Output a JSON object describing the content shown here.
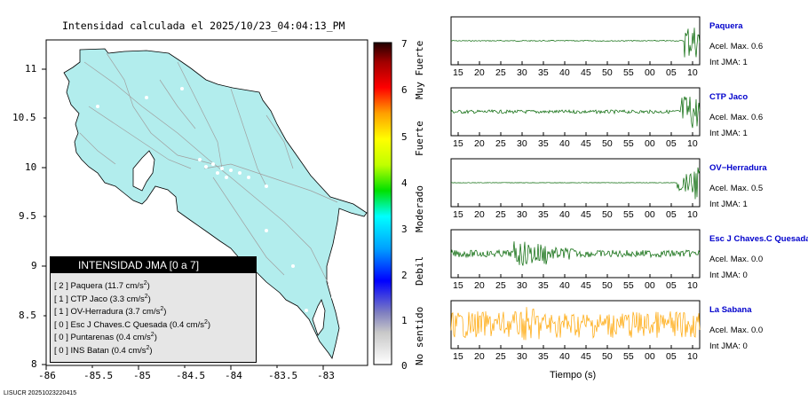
{
  "title": "Intensidad calculada el 2025/10/23_04:04:13_PM",
  "footer": "LISUCR 20251023220415",
  "map": {
    "x_ticks": [
      "-86",
      "-85.5",
      "-85",
      "-84.5",
      "-84",
      "-83.5",
      "-83"
    ],
    "y_ticks": [
      "11",
      "10.5",
      "10",
      "9.5",
      "9",
      "8.5",
      "8"
    ],
    "land_color": "#b2eded",
    "border_color": "#000000"
  },
  "legend": {
    "title": "INTENSIDAD JMA [0 a 7]",
    "items": [
      {
        "level": "[ 2 ]",
        "name": "Paquera",
        "accel": "(11.7 cm/s",
        "exp": "2",
        "close": ")"
      },
      {
        "level": "[ 1 ]",
        "name": "CTP Jaco",
        "accel": "(3.3 cm/s",
        "exp": "2",
        "close": ")"
      },
      {
        "level": "[ 1 ]",
        "name": "OV-Herradura",
        "accel": "(3.7 cm/s",
        "exp": "2",
        "close": ")"
      },
      {
        "level": "[ 0 ]",
        "name": "Esc J Chaves.C Quesada",
        "accel": "(0.4 cm/s",
        "exp": "2",
        "close": ")"
      },
      {
        "level": "[ 0 ]",
        "name": "Puntarenas",
        "accel": "(0.4 cm/s",
        "exp": "2",
        "close": ")"
      },
      {
        "level": "[ 0 ]",
        "name": "INS Batan",
        "accel": "(0.4 cm/s",
        "exp": "2",
        "close": ")"
      }
    ]
  },
  "scale": {
    "numbers": [
      "7",
      "6",
      "5",
      "4",
      "3",
      "2",
      "1",
      "0"
    ],
    "words": [
      "Muy Fuerte",
      "Fuerte",
      "Moderado",
      "Debil",
      "No sentido"
    ]
  },
  "waveforms": {
    "time_ticks": [
      "15",
      "20",
      "25",
      "30",
      "35",
      "40",
      "45",
      "50",
      "55",
      "00",
      "05",
      "10"
    ],
    "xlabel": "Tiempo (s)",
    "panels": [
      {
        "name": "Paquera",
        "accel": "Acel. Max. 0.6",
        "jma": "Int JMA: 1",
        "color": "#006400",
        "fill": "#ffffff"
      },
      {
        "name": "CTP Jaco",
        "accel": "Acel. Max. 0.6",
        "jma": "Int JMA: 1",
        "color": "#006400",
        "fill": "#ffffff"
      },
      {
        "name": "OV−Herradura",
        "accel": "Acel. Max. 0.5",
        "jma": "Int JMA: 1",
        "color": "#006400",
        "fill": "#ffffff"
      },
      {
        "name": "Esc J Chaves.C Quesada",
        "accel": "Acel. Max. 0.0",
        "jma": "Int JMA: 0",
        "color": "#006400",
        "fill": "#ffffff"
      },
      {
        "name": "La Sabana",
        "accel": "Acel. Max. 0.0",
        "jma": "Int JMA: 0",
        "color": "#ffa500",
        "fill": "#ffffff"
      }
    ]
  }
}
